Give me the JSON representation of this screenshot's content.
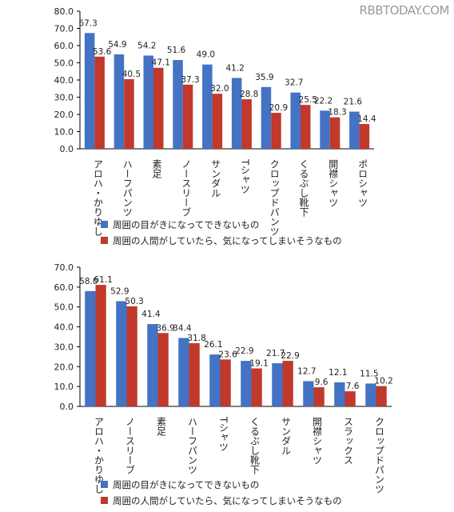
{
  "watermark": "RBBTODAY.COM",
  "colors": {
    "series1": "#4472c4",
    "series2": "#c0392b",
    "axis": "#000000",
    "label": "#222222"
  },
  "chart_data": [
    {
      "type": "bar",
      "ylim": [
        0,
        80
      ],
      "yticks": [
        "0.0",
        "10.0",
        "20.0",
        "30.0",
        "40.0",
        "50.0",
        "60.0",
        "70.0",
        "80.0"
      ],
      "grid": false,
      "legend_position": "bottom-left",
      "categories": [
        "アロハ・かりゆし",
        "ハーフパンツ",
        "素足",
        "ノースリーブ",
        "サンダル",
        "Tシャツ",
        "クロップドパンツ",
        "くるぶし靴下",
        "開襟シャツ",
        "ポロシャツ"
      ],
      "series": [
        {
          "name": "周囲の目がきになってできないもの",
          "values": [
            67.3,
            54.9,
            54.2,
            51.6,
            49.0,
            41.2,
            35.9,
            32.7,
            22.2,
            21.6
          ],
          "labels": [
            "67.3",
            "54.9",
            "54.2",
            "51.6",
            "49.0",
            "41.2",
            "35.9",
            "32.7",
            "22.2",
            "21.6"
          ]
        },
        {
          "name": "周囲の人間がしていたら、気になってしまいそうなもの",
          "values": [
            53.6,
            40.5,
            47.1,
            37.3,
            32.0,
            28.8,
            20.9,
            25.5,
            18.3,
            14.4
          ],
          "labels": [
            "53.6",
            "40.5",
            "47.1",
            "37.3",
            "32.0",
            "28.8",
            "20.9",
            "25.5",
            "18.3",
            "14.4"
          ]
        }
      ]
    },
    {
      "type": "bar",
      "ylim": [
        0,
        70
      ],
      "yticks": [
        "0.0",
        "10.0",
        "20.0",
        "30.0",
        "40.0",
        "50.0",
        "60.0",
        "70.0"
      ],
      "grid": false,
      "legend_position": "bottom-left",
      "categories": [
        "アロハ・かりゆし",
        "ノースリーブ",
        "素足",
        "ハーフパンツ",
        "Tシャツ",
        "くるぶし靴下",
        "サンダル",
        "開襟シャツ",
        "スラックス",
        "クロップドパンツ"
      ],
      "series": [
        {
          "name": "周囲の目がきになってできないもの",
          "values": [
            58.0,
            52.9,
            41.4,
            34.4,
            26.1,
            22.9,
            21.7,
            12.7,
            12.1,
            11.5
          ],
          "labels": [
            "58.0",
            "52.9",
            "41.4",
            "34.4",
            "26.1",
            "22.9",
            "21.7",
            "12.7",
            "12.1",
            "11.5"
          ]
        },
        {
          "name": "周囲の人間がしていたら、気になってしまいそうなもの",
          "values": [
            61.1,
            50.3,
            36.9,
            31.8,
            23.6,
            19.1,
            22.9,
            9.6,
            7.6,
            10.2
          ],
          "labels": [
            "61.1",
            "50.3",
            "36.9",
            "31.8",
            "23.6",
            "19.1",
            "22.9",
            "9.6",
            "7.6",
            "10.2"
          ]
        }
      ]
    }
  ]
}
